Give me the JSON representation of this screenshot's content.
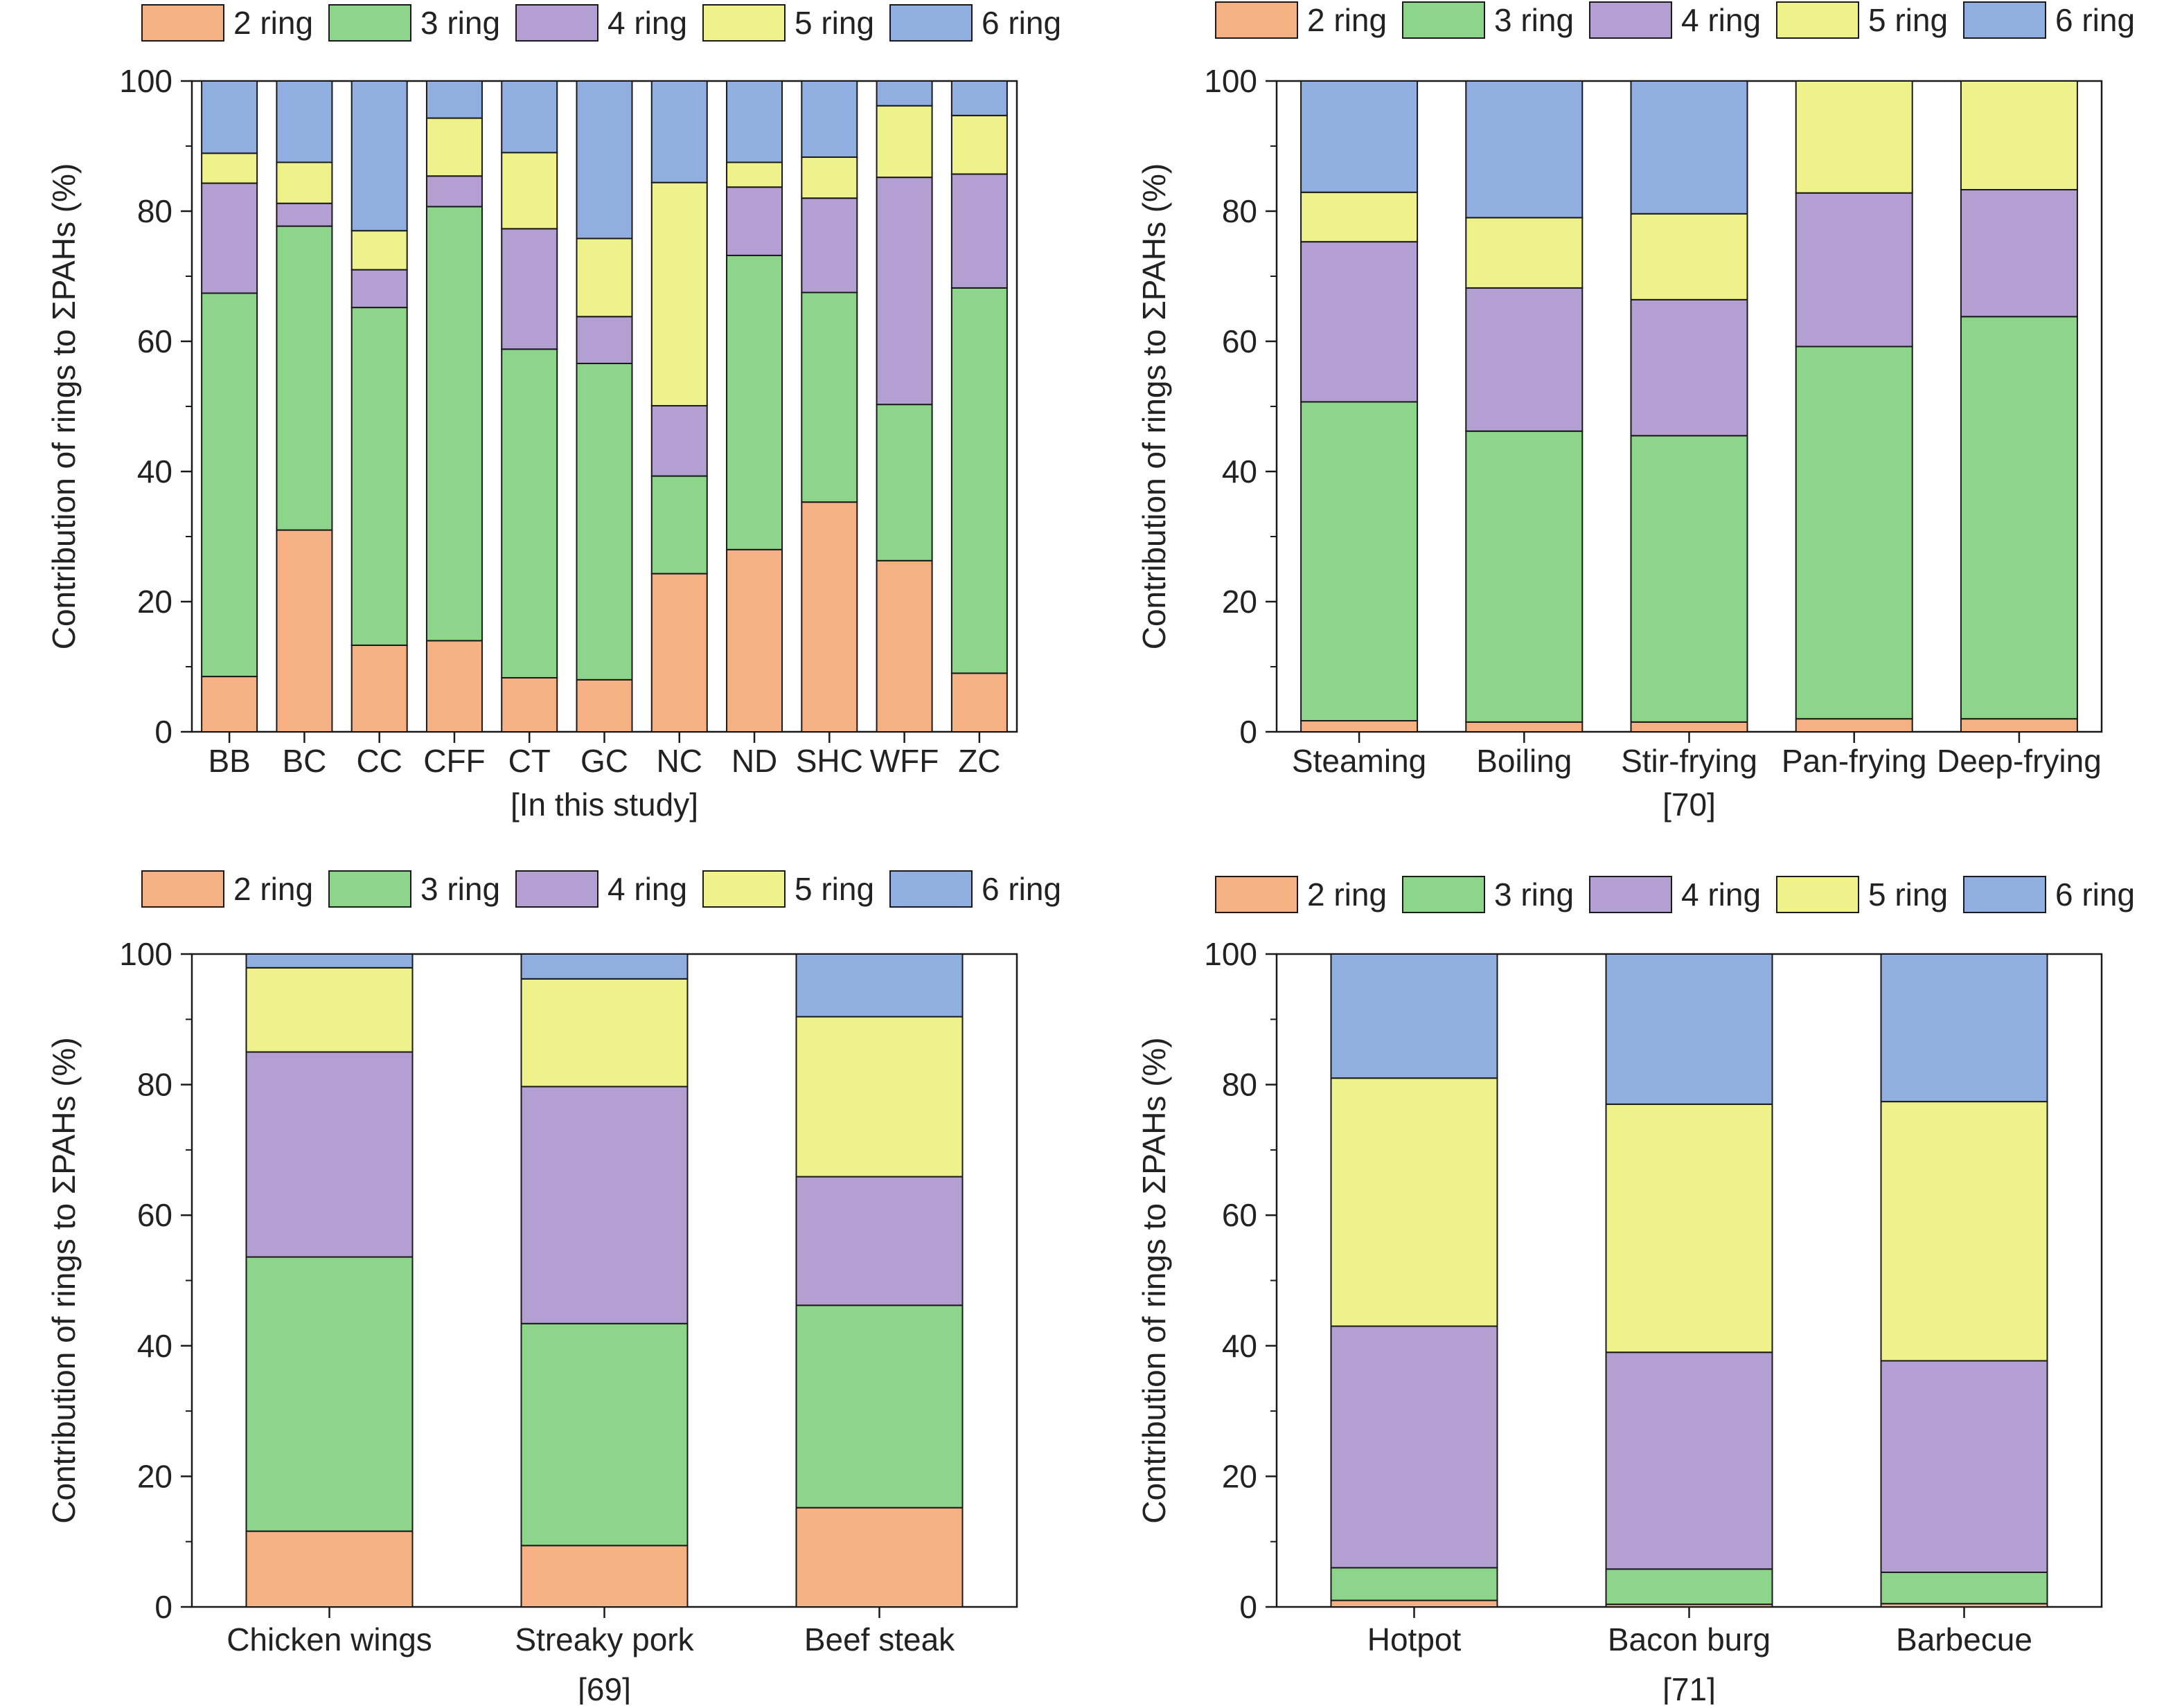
{
  "colors": {
    "2 ring": "#f5b183",
    "3 ring": "#8ed58c",
    "4 ring": "#b39fd2",
    "5 ring": "#eff28b",
    "6 ring": "#90afe0",
    "stroke": "#1a1a1a"
  },
  "chart_data": [
    {
      "type": "bar",
      "stacked": true,
      "panel": "top-left",
      "ylabel": "Contribution of rings to ΣPAHs (%)",
      "xlabel": "[In this study]",
      "ylim": [
        0,
        100
      ],
      "yticks": [
        "0",
        "20",
        "40",
        "60",
        "80",
        "100"
      ],
      "legend": [
        "2 ring",
        "3 ring",
        "4 ring",
        "5 ring",
        "6 ring"
      ],
      "legend_position": "top",
      "categories": [
        "BB",
        "BC",
        "CC",
        "CFF",
        "CT",
        "GC",
        "NC",
        "ND",
        "SHC",
        "WFF",
        "ZC"
      ],
      "series": [
        {
          "name": "2 ring",
          "values": [
            8.5,
            31,
            13.3,
            14,
            8.3,
            8,
            24.3,
            28,
            35.3,
            26.3,
            9
          ]
        },
        {
          "name": "3 ring",
          "values": [
            58.9,
            46.7,
            51.9,
            66.7,
            50.5,
            48.6,
            15,
            45.2,
            32.2,
            24,
            59.2
          ]
        },
        {
          "name": "4 ring",
          "values": [
            16.9,
            3.5,
            5.8,
            4.7,
            18.5,
            7.2,
            10.8,
            10.5,
            14.5,
            34.9,
            17.5
          ]
        },
        {
          "name": "5 ring",
          "values": [
            4.6,
            6.3,
            6,
            8.9,
            11.7,
            12,
            34.3,
            3.8,
            6.3,
            11,
            9
          ]
        },
        {
          "name": "6 ring",
          "values": [
            11.1,
            12.5,
            23,
            5.7,
            11,
            24.2,
            15.6,
            12.5,
            11.7,
            3.8,
            5.3
          ]
        }
      ]
    },
    {
      "type": "bar",
      "stacked": true,
      "panel": "top-right",
      "ylabel": "Contribution of rings to ΣPAHs (%)",
      "xlabel": "[70]",
      "ylim": [
        0,
        100
      ],
      "yticks": [
        "0",
        "20",
        "40",
        "60",
        "80",
        "100"
      ],
      "legend": [
        "2 ring",
        "3 ring",
        "4 ring",
        "5 ring",
        "6 ring"
      ],
      "legend_position": "top",
      "categories": [
        "Steaming",
        "Boiling",
        "Stir-frying",
        "Pan-frying",
        "Deep-frying"
      ],
      "series": [
        {
          "name": "2 ring",
          "values": [
            1.7,
            1.5,
            1.5,
            2,
            2
          ]
        },
        {
          "name": "3 ring",
          "values": [
            49,
            44.7,
            44,
            57.2,
            61.8
          ]
        },
        {
          "name": "4 ring",
          "values": [
            24.6,
            22,
            20.9,
            23.6,
            19.5
          ]
        },
        {
          "name": "5 ring",
          "values": [
            7.6,
            10.8,
            13.2,
            17.2,
            16.7
          ]
        },
        {
          "name": "6 ring",
          "values": [
            17.1,
            21,
            20.4,
            0,
            0
          ]
        }
      ]
    },
    {
      "type": "bar",
      "stacked": true,
      "panel": "bottom-left",
      "ylabel": "Contribution of rings to ΣPAHs (%)",
      "xlabel": "[69]",
      "ylim": [
        0,
        100
      ],
      "yticks": [
        "0",
        "20",
        "40",
        "60",
        "80",
        "100"
      ],
      "legend": [
        "2 ring",
        "3 ring",
        "4 ring",
        "5 ring",
        "6 ring"
      ],
      "legend_position": "top",
      "categories": [
        "Chicken wings",
        "Streaky pork",
        "Beef steak"
      ],
      "series": [
        {
          "name": "2 ring",
          "values": [
            11.6,
            9.4,
            15.2
          ]
        },
        {
          "name": "3 ring",
          "values": [
            42,
            34,
            31
          ]
        },
        {
          "name": "4 ring",
          "values": [
            31.4,
            36.3,
            19.7
          ]
        },
        {
          "name": "5 ring",
          "values": [
            12.9,
            16.5,
            24.5
          ]
        },
        {
          "name": "6 ring",
          "values": [
            2.1,
            3.8,
            9.6
          ]
        }
      ]
    },
    {
      "type": "bar",
      "stacked": true,
      "panel": "bottom-right",
      "ylabel": "Contribution of rings to ΣPAHs (%)",
      "xlabel": "[71]",
      "ylim": [
        0,
        100
      ],
      "yticks": [
        "0",
        "20",
        "40",
        "60",
        "80",
        "100"
      ],
      "legend": [
        "2 ring",
        "3 ring",
        "4 ring",
        "5 ring",
        "6 ring"
      ],
      "legend_position": "top",
      "categories": [
        "Hotpot",
        "Bacon burg",
        "Barbecue"
      ],
      "series": [
        {
          "name": "2 ring",
          "values": [
            1,
            0.4,
            0.5
          ]
        },
        {
          "name": "3 ring",
          "values": [
            5,
            5.4,
            4.8
          ]
        },
        {
          "name": "4 ring",
          "values": [
            37,
            33.2,
            32.4
          ]
        },
        {
          "name": "5 ring",
          "values": [
            38,
            38,
            39.7
          ]
        },
        {
          "name": "6 ring",
          "values": [
            19,
            23,
            22.6
          ]
        }
      ]
    }
  ]
}
